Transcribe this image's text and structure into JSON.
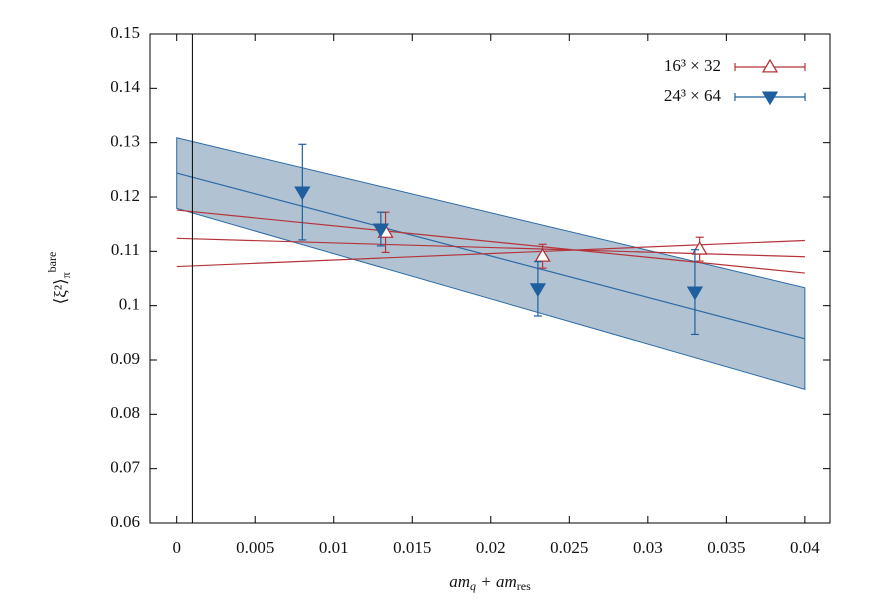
{
  "chart_data": {
    "type": "errorbar",
    "xlabel": {
      "parts": [
        "am",
        "q",
        " + am",
        "res"
      ]
    },
    "ylabel": {
      "parts": [
        "⟨ξ²⟩",
        "π",
        "bare"
      ]
    },
    "xlim": [
      -0.0017,
      0.0416
    ],
    "ylim": [
      0.06,
      0.15
    ],
    "xticks": [
      0,
      0.005,
      0.01,
      0.015,
      0.02,
      0.025,
      0.03,
      0.035,
      0.04
    ],
    "yticks": [
      0.06,
      0.07,
      0.08,
      0.09,
      0.1,
      0.11,
      0.12,
      0.13,
      0.14,
      0.15
    ],
    "vline": 0.001,
    "legend": "top-right",
    "band": {
      "color": "#2c6aa6",
      "fill": "#a9bccd",
      "x": [
        0,
        0.04
      ],
      "upper": [
        0.1309,
        0.1033
      ],
      "lower": [
        0.1179,
        0.0846
      ]
    },
    "fits": [
      {
        "color": "#2c6aa6",
        "x": [
          0,
          0.04
        ],
        "values": [
          0.1244,
          0.0939
        ]
      },
      {
        "color": "#b5343a",
        "x": [
          0,
          0.04
        ],
        "values": [
          0.1176,
          0.106
        ]
      },
      {
        "color": "#b5343a",
        "x": [
          0,
          0.04
        ],
        "values": [
          0.1072,
          0.112
        ]
      },
      {
        "color": "#b5343a",
        "x": [
          0,
          0.04
        ],
        "values": [
          0.1124,
          0.109
        ]
      }
    ],
    "series": [
      {
        "name": "16³ × 32",
        "color": "#b5343a",
        "marker": "open-triangle-up",
        "x": [
          0.0133,
          0.0233,
          0.0333
        ],
        "values": [
          0.1135,
          0.1091,
          0.1104
        ],
        "errors": [
          0.0037,
          0.0022,
          0.0022
        ]
      },
      {
        "name": "24³ × 64",
        "color": "#1f5f9e",
        "marker": "filled-triangle-down",
        "x": [
          0.008,
          0.013,
          0.023,
          0.033
        ],
        "values": [
          0.1209,
          0.1141,
          0.1031,
          0.1025
        ],
        "errors": [
          0.0088,
          0.0031,
          0.005,
          0.0078
        ]
      }
    ]
  }
}
